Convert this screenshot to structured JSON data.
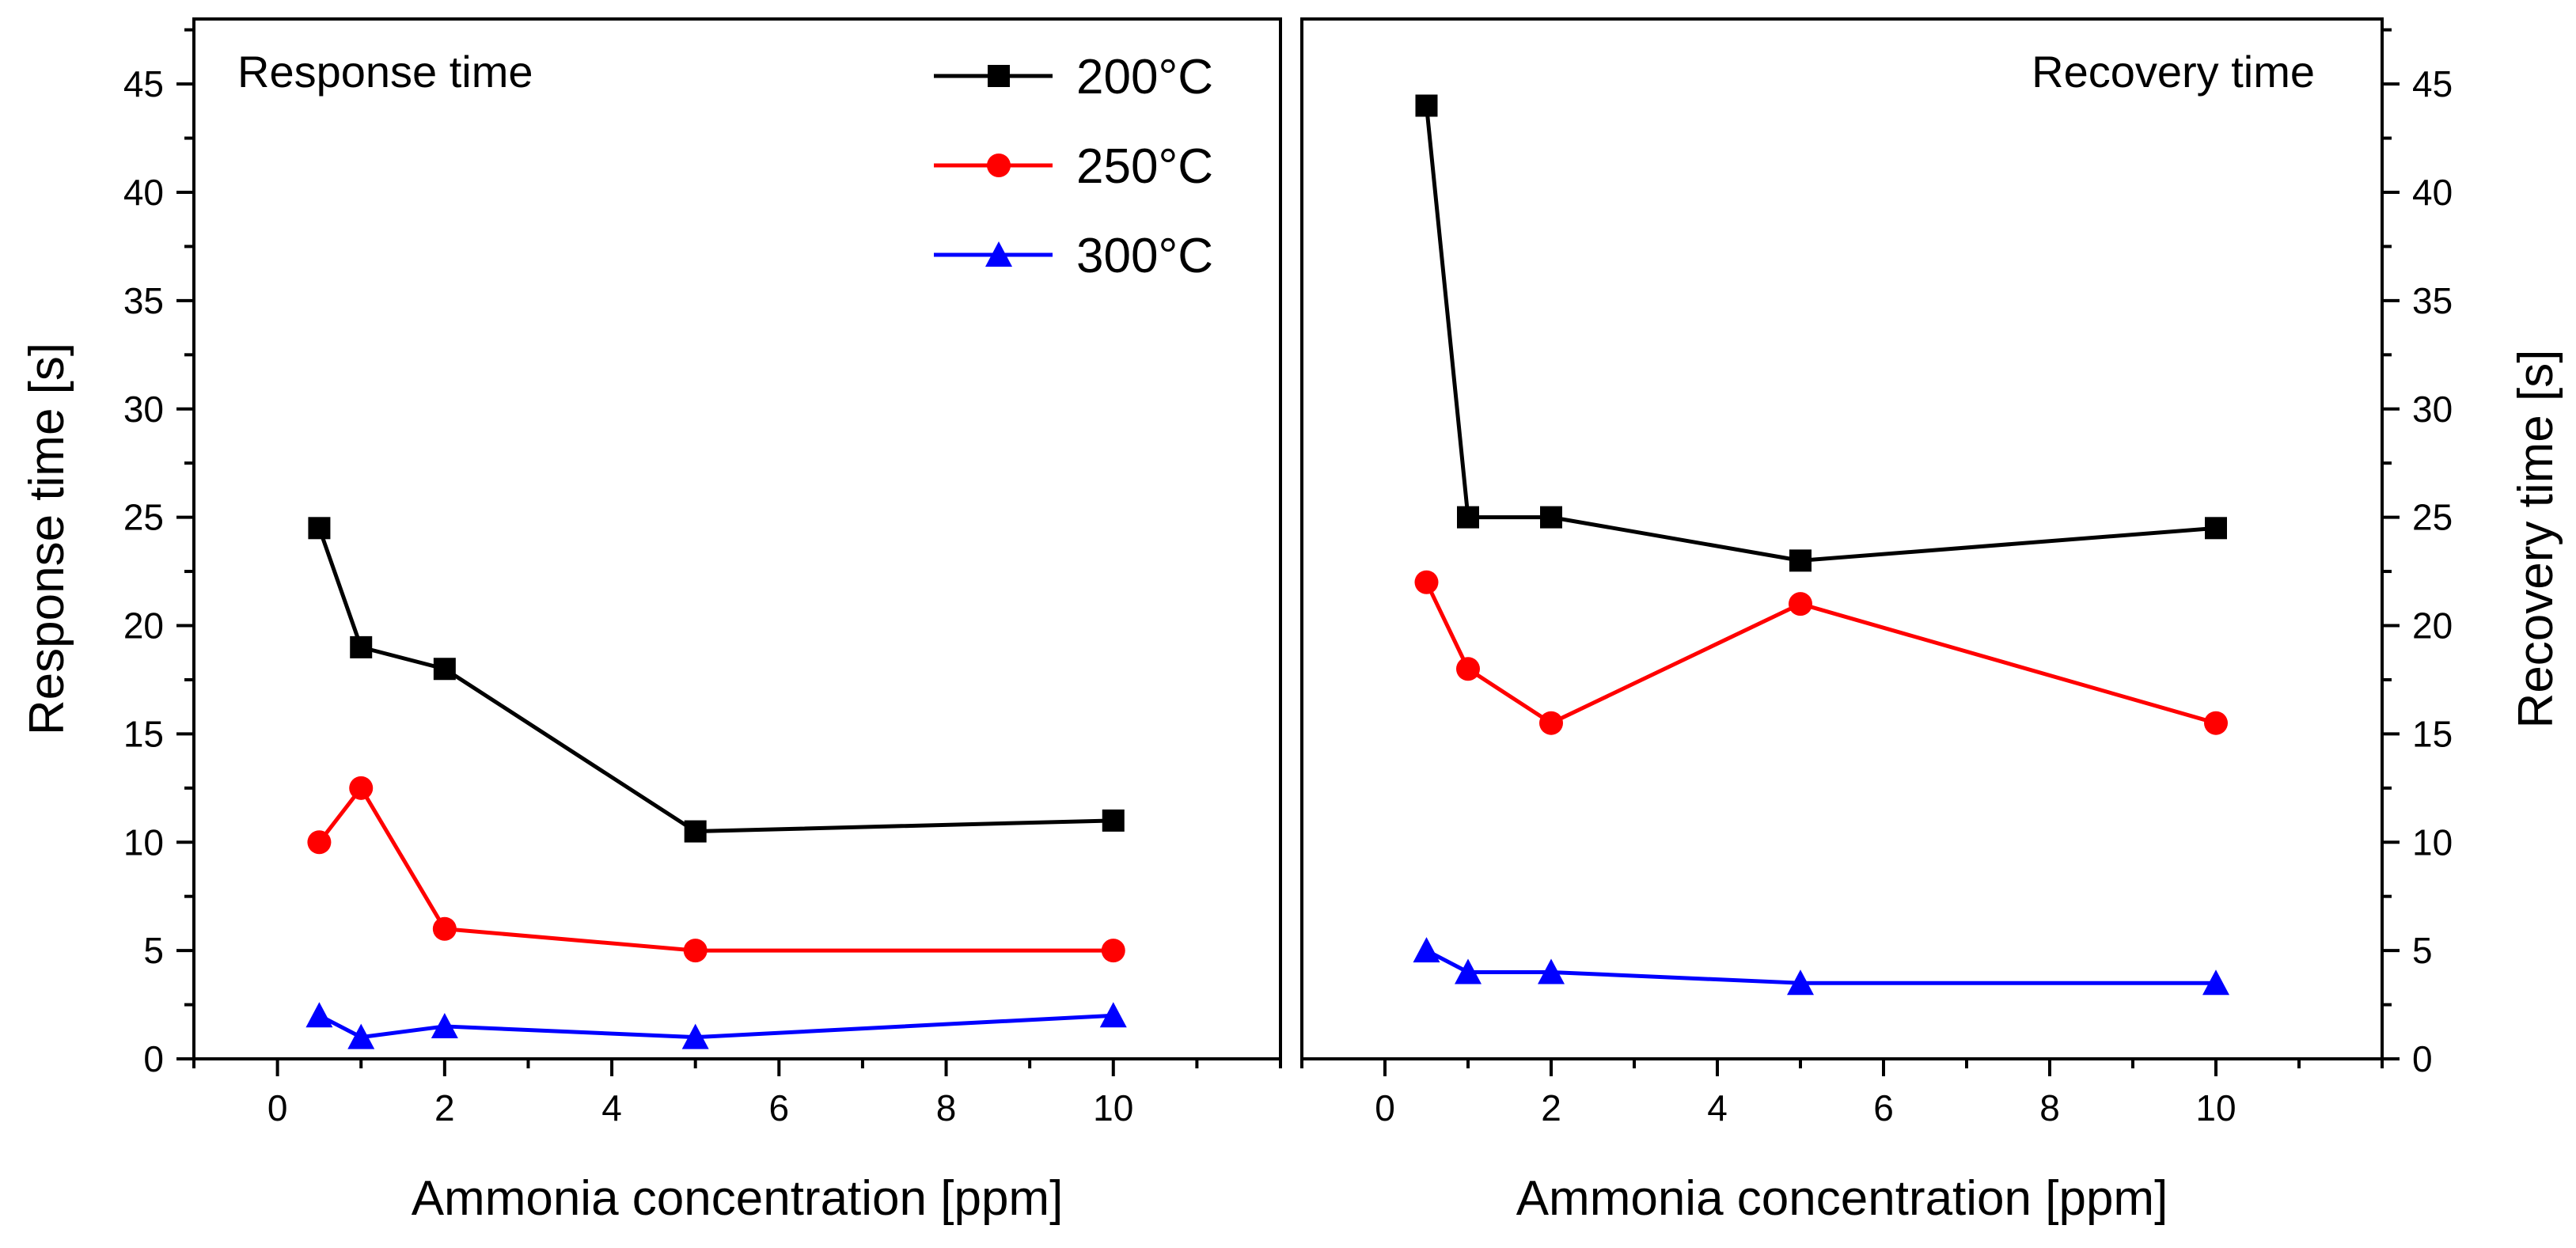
{
  "chart_data": [
    {
      "type": "line",
      "panel_title": "Response time",
      "xlabel": "Ammonia concentration [ppm]",
      "ylabel": "Response time [s]",
      "xlim": [
        -1,
        12
      ],
      "ylim": [
        0,
        48
      ],
      "xticks": [
        0,
        2,
        4,
        6,
        8,
        10
      ],
      "xtick_labels": [
        "0",
        "2",
        "4",
        "6",
        "8",
        "10"
      ],
      "yticks": [
        0,
        5,
        10,
        15,
        20,
        25,
        30,
        35,
        40,
        45
      ],
      "ytick_labels": [
        "0",
        "5",
        "10",
        "15",
        "20",
        "25",
        "30",
        "35",
        "40",
        "45"
      ],
      "y_axis_side": "left",
      "legend_placement": "top-right",
      "x": [
        0.5,
        1,
        2,
        5,
        10
      ],
      "series": [
        {
          "name": "200°C",
          "color": "#000000",
          "marker": "square",
          "values": [
            24.5,
            19,
            18,
            10.5,
            11
          ]
        },
        {
          "name": "250°C",
          "color": "#ff0000",
          "marker": "circle",
          "values": [
            10,
            12.5,
            6,
            5,
            5
          ]
        },
        {
          "name": "300°C",
          "color": "#0000ff",
          "marker": "triangle",
          "values": [
            2,
            1,
            1.5,
            1,
            2
          ]
        }
      ]
    },
    {
      "type": "line",
      "panel_title": "Recovery time",
      "xlabel": "Ammonia concentration [ppm]",
      "ylabel": "Recovery time [s]",
      "xlim": [
        -1,
        12
      ],
      "ylim": [
        0,
        48
      ],
      "xticks": [
        0,
        2,
        4,
        6,
        8,
        10
      ],
      "xtick_labels": [
        "0",
        "2",
        "4",
        "6",
        "8",
        "10"
      ],
      "yticks": [
        0,
        5,
        10,
        15,
        20,
        25,
        30,
        35,
        40,
        45
      ],
      "ytick_labels": [
        "0",
        "5",
        "10",
        "15",
        "20",
        "25",
        "30",
        "35",
        "40",
        "45"
      ],
      "y_axis_side": "right",
      "x": [
        0.5,
        1,
        2,
        5,
        10
      ],
      "series": [
        {
          "name": "200°C",
          "color": "#000000",
          "marker": "square",
          "values": [
            44,
            25,
            25,
            23,
            24.5
          ]
        },
        {
          "name": "250°C",
          "color": "#ff0000",
          "marker": "circle",
          "values": [
            22,
            18,
            15.5,
            21,
            15.5
          ]
        },
        {
          "name": "300°C",
          "color": "#0000ff",
          "marker": "triangle",
          "values": [
            5,
            4,
            4,
            3.5,
            3.5
          ]
        }
      ]
    }
  ]
}
